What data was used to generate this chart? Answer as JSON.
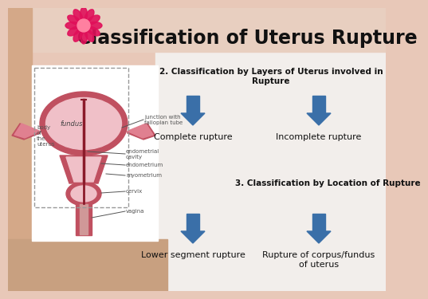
{
  "title": "Classification of Uterus Rupture",
  "bg_top": "#e8c8b8",
  "bg_right": "#f0ece8",
  "title_color": "#111111",
  "title_fontsize": 17,
  "section2_header": "2. Classification by Layers of Uterus involved in\nRupture",
  "section3_header": "3. Classification by Location of Rupture",
  "arrow_color": "#3a6fa8",
  "label1": "Complete rupture",
  "label2": "Incomplete rupture",
  "label3": "Lower segment rupture",
  "label4": "Rupture of corpus/fundus\nof uterus",
  "header_fontsize": 7.5,
  "label_fontsize": 8,
  "diagram_border_color": "#999999",
  "uterus_outer": "#c05060",
  "uterus_inner": "#f0c0c8",
  "uterus_mid": "#e08090",
  "skin_color": "#d4a090",
  "white": "#ffffff",
  "label_color": "#333333",
  "flower_color": "#e0105a",
  "flower_center": "#ff80a0"
}
